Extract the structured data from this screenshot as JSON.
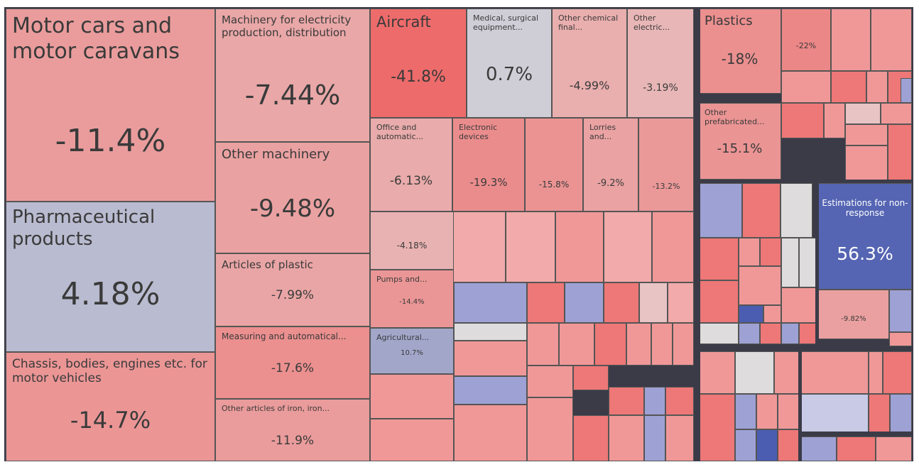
{
  "chart_data": {
    "type": "treemap",
    "categories": [
      "Motor cars and motor caravans",
      "Pharmaceutical products",
      "Chassis, bodies, engines etc. for motor vehicles",
      "Machinery for electricity production, distribution",
      "Other machinery",
      "Articles of plastic",
      "Measuring and automatical...",
      "Other articles of iron, iron...",
      "Aircraft",
      "Medical, surgical equipment...",
      "Other chemical final...",
      "Other electric...",
      "Office and automatic...",
      "Electronic devices",
      null,
      "Lorries and...",
      null,
      null,
      "Pumps and...",
      "Agricultural...",
      "Plastics",
      null,
      "Other prefabricated...",
      "Estimations for non-response",
      null
    ],
    "values": [
      -11.4,
      4.18,
      -14.7,
      -7.44,
      -9.48,
      -7.99,
      -17.6,
      -11.9,
      -41.8,
      0.7,
      -4.99,
      -3.19,
      -6.13,
      -19.3,
      -15.8,
      -9.2,
      -13.2,
      -4.18,
      -14.4,
      10.7,
      -18,
      -22,
      -15.1,
      56.3,
      -9.82
    ],
    "value_labels": [
      "-11.4%",
      "4.18%",
      "-14.7%",
      "-7.44%",
      "-9.48%",
      "-7.99%",
      "-17.6%",
      "-11.9%",
      "-41.8%",
      "0.7%",
      "-4.99%",
      "-3.19%",
      "-6.13%",
      "-19.3%",
      "-15.8%",
      "-9.2%",
      "-13.2%",
      "-4.18%",
      "-14.4%",
      "10.7%",
      "-18%",
      "-22%",
      "-15.1%",
      "56.3%",
      "-9.82%"
    ]
  }
}
